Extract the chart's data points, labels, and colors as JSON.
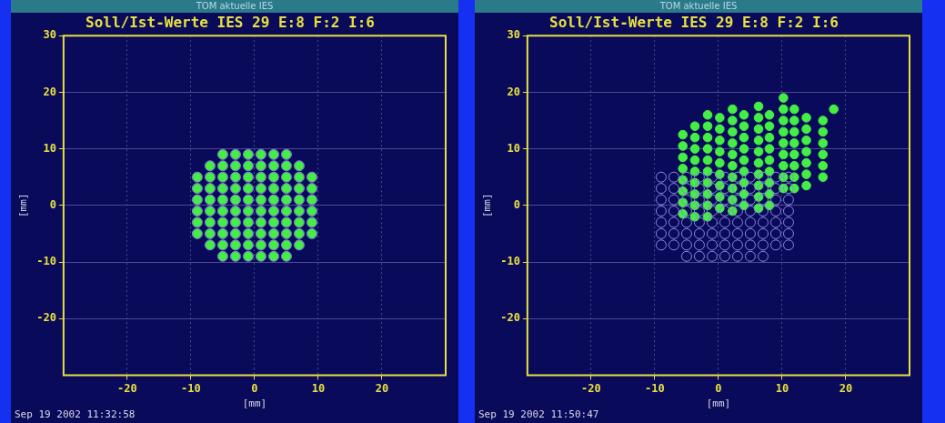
{
  "chart_data": [
    {
      "type": "scatter",
      "title": "Soll/Ist-Werte IES 29 E:8 F:2 I:6",
      "subtitle": "TOM aktuelle IES",
      "xlabel": "[mm]",
      "ylabel": "[mm]",
      "annotations": [
        "Sep 19 2002 11:32:58"
      ],
      "xlim": [
        -30,
        30
      ],
      "ylim": [
        -30,
        30
      ],
      "xticks": [
        -20,
        -10,
        0,
        10,
        20
      ],
      "yticks": [
        -20,
        -10,
        0,
        10,
        20,
        30
      ],
      "grid": true,
      "legend": false,
      "marker": "circle",
      "series": [
        {
          "color": "#8a88e0",
          "x": [
            -5,
            -3,
            -1,
            1,
            3,
            5,
            -7,
            -5,
            -3,
            -1,
            1,
            3,
            5,
            7,
            -9,
            -7,
            -5,
            -3,
            -1,
            1,
            3,
            5,
            7,
            9,
            -9,
            -7,
            -5,
            -3,
            -1,
            1,
            3,
            5,
            7,
            9,
            -9,
            -7,
            -5,
            -3,
            -1,
            1,
            3,
            5,
            7,
            9,
            -9,
            -7,
            -5,
            -3,
            -1,
            1,
            3,
            5,
            7,
            9,
            -9,
            -7,
            -5,
            -3,
            -1,
            1,
            3,
            5,
            7,
            9,
            -9,
            -7,
            -5,
            -3,
            -1,
            1,
            3,
            5,
            7,
            9,
            -7,
            -5,
            -3,
            -1,
            1,
            3,
            5,
            7,
            -5,
            -3,
            -1,
            1,
            3,
            5
          ],
          "values": [
            9,
            9,
            9,
            9,
            9,
            9,
            7,
            7,
            7,
            7,
            7,
            7,
            7,
            7,
            5,
            5,
            5,
            5,
            5,
            5,
            5,
            5,
            5,
            5,
            3,
            3,
            3,
            3,
            3,
            3,
            3,
            3,
            3,
            3,
            1,
            1,
            1,
            1,
            1,
            1,
            1,
            1,
            1,
            1,
            -1,
            -1,
            -1,
            -1,
            -1,
            -1,
            -1,
            -1,
            -1,
            -1,
            -3,
            -3,
            -3,
            -3,
            -3,
            -3,
            -3,
            -3,
            -3,
            -3,
            -5,
            -5,
            -5,
            -5,
            -5,
            -5,
            -5,
            -5,
            -5,
            -5,
            -7,
            -7,
            -7,
            -7,
            -7,
            -7,
            -7,
            -7,
            -9,
            -9,
            -9,
            -9,
            -9,
            -9
          ]
        },
        {
          "color": "#44ee44",
          "x": [
            -5,
            -3,
            -1,
            1,
            3,
            5,
            -7,
            -5,
            -3,
            -1,
            1,
            3,
            5,
            7,
            -9,
            -7,
            -5,
            -3,
            -1,
            1,
            3,
            5,
            7,
            9,
            -9,
            -7,
            -5,
            -3,
            -1,
            1,
            3,
            5,
            7,
            9,
            -9,
            -7,
            -5,
            -3,
            -1,
            1,
            3,
            5,
            7,
            9,
            -9,
            -7,
            -5,
            -3,
            -1,
            1,
            3,
            5,
            7,
            9,
            -9,
            -7,
            -5,
            -3,
            -1,
            1,
            3,
            5,
            7,
            9,
            -9,
            -7,
            -5,
            -3,
            -1,
            1,
            3,
            5,
            7,
            9,
            -7,
            -5,
            -3,
            -1,
            1,
            3,
            5,
            7,
            -5,
            -3,
            -1,
            1,
            3,
            5
          ],
          "values": [
            9,
            9,
            9,
            9,
            9,
            9,
            7,
            7,
            7,
            7,
            7,
            7,
            7,
            7,
            5,
            5,
            5,
            5,
            5,
            5,
            5,
            5,
            5,
            5,
            3,
            3,
            3,
            3,
            3,
            3,
            3,
            3,
            3,
            3,
            1,
            1,
            1,
            1,
            1,
            1,
            1,
            1,
            1,
            1,
            -1,
            -1,
            -1,
            -1,
            -1,
            -1,
            -1,
            -1,
            -1,
            -1,
            -3,
            -3,
            -3,
            -3,
            -3,
            -3,
            -3,
            -3,
            -3,
            -3,
            -5,
            -5,
            -5,
            -5,
            -5,
            -5,
            -5,
            -5,
            -5,
            -5,
            -7,
            -7,
            -7,
            -7,
            -7,
            -7,
            -7,
            -7,
            -9,
            -9,
            -9,
            -9,
            -9,
            -9
          ]
        }
      ]
    },
    {
      "type": "scatter",
      "title": "Soll/Ist-Werte IES 29 E:8 F:2 I:6",
      "subtitle": "TOM aktuelle IES",
      "xlabel": "[mm]",
      "ylabel": "[mm]",
      "annotations": [
        "Sep 19 2002 11:50:47"
      ],
      "xlim": [
        -30,
        30
      ],
      "ylim": [
        -30,
        30
      ],
      "xticks": [
        -20,
        -10,
        0,
        10,
        20
      ],
      "yticks": [
        -20,
        -10,
        0,
        10,
        20,
        30
      ],
      "grid": true,
      "legend": false,
      "marker": "circle",
      "series": [
        {
          "color": "#8a88e0",
          "x": [
            -9,
            -7,
            -5,
            -3,
            -1,
            1,
            3,
            5,
            7,
            9,
            11,
            -9,
            -7,
            -5,
            -3,
            -1,
            1,
            3,
            5,
            7,
            9,
            11,
            -9,
            -7,
            -5,
            -3,
            -1,
            1,
            3,
            5,
            7,
            9,
            11,
            -9,
            -7,
            -5,
            -3,
            -1,
            1,
            3,
            5,
            7,
            9,
            11,
            -9,
            -7,
            -5,
            -3,
            -1,
            1,
            3,
            5,
            7,
            9,
            11,
            -9,
            -7,
            -5,
            -3,
            -1,
            1,
            3,
            5,
            7,
            9,
            11,
            -9,
            -7,
            -5,
            -3,
            -1,
            1,
            3,
            5,
            7,
            9,
            11,
            -5,
            -3,
            -1,
            1,
            3,
            5,
            7
          ],
          "values": [
            5,
            5,
            5,
            5,
            5,
            5,
            5,
            5,
            5,
            5,
            5,
            3,
            3,
            3,
            3,
            3,
            3,
            3,
            3,
            3,
            3,
            3,
            1,
            1,
            1,
            1,
            1,
            1,
            1,
            1,
            1,
            1,
            1,
            -1,
            -1,
            -1,
            -1,
            -1,
            -1,
            -1,
            -1,
            -1,
            -1,
            -1,
            -3,
            -3,
            -3,
            -3,
            -3,
            -3,
            -3,
            -3,
            -3,
            -3,
            -3,
            -5,
            -5,
            -5,
            -5,
            -5,
            -5,
            -5,
            -5,
            -5,
            -5,
            -5,
            -7,
            -7,
            -7,
            -7,
            -7,
            -7,
            -7,
            -7,
            -7,
            -7,
            -7,
            -9,
            -9,
            -9,
            -9,
            -9,
            -9,
            -9
          ]
        },
        {
          "color": "#44ee44",
          "x": [
            -5.6,
            -5.6,
            -5.6,
            -5.6,
            -5.6,
            -5.6,
            -5.6,
            -5.6,
            -3.7,
            -3.7,
            -3.7,
            -3.7,
            -3.7,
            -3.7,
            -3.7,
            -3.7,
            -3.7,
            -1.7,
            -1.7,
            -1.7,
            -1.7,
            -1.7,
            -1.7,
            -1.7,
            -1.7,
            -1.7,
            -1.7,
            0.2,
            0.2,
            0.2,
            0.2,
            0.2,
            0.2,
            0.2,
            0.2,
            0.2,
            2.2,
            2.2,
            2.2,
            2.2,
            2.2,
            2.2,
            2.2,
            2.2,
            2.2,
            2.2,
            4,
            4,
            4,
            4,
            4,
            4,
            4,
            4,
            4,
            6.3,
            6.3,
            6.3,
            6.3,
            6.3,
            6.3,
            6.3,
            6.3,
            6.3,
            6.3,
            8,
            8,
            8,
            8,
            8,
            8,
            8,
            8,
            8,
            10.2,
            10.2,
            10.2,
            10.2,
            10.2,
            10.2,
            10.2,
            10.2,
            10.2,
            11.9,
            11.9,
            11.9,
            11.9,
            11.9,
            11.9,
            11.9,
            11.9,
            13.8,
            13.8,
            13.8,
            13.8,
            13.8,
            13.8,
            13.8,
            16.4,
            16.4,
            16.4,
            16.4,
            16.4,
            16.4,
            18.1
          ],
          "values": [
            -1.5,
            0.5,
            2.5,
            4.5,
            6.5,
            8.5,
            10.5,
            12.5,
            -2,
            0,
            2,
            4,
            6,
            8,
            10,
            12,
            14,
            -2,
            0,
            2,
            4,
            6,
            8,
            10,
            12,
            14,
            16,
            -0.5,
            1.5,
            3.5,
            5.5,
            7.5,
            9.5,
            11.5,
            13.5,
            15.5,
            -1,
            1,
            3,
            5,
            7,
            9,
            11,
            13,
            15,
            17,
            0,
            2,
            4,
            6,
            8,
            10,
            12,
            14,
            16,
            -0.5,
            1.5,
            3.5,
            5.5,
            7.5,
            9.5,
            11.5,
            13.5,
            15.5,
            17.5,
            0,
            2,
            4,
            6,
            8,
            10,
            12,
            14,
            16,
            3,
            5,
            7,
            9,
            11,
            13,
            15,
            17,
            19,
            3,
            5,
            7,
            9,
            11,
            13,
            15,
            17,
            3.5,
            5.5,
            7.5,
            9.5,
            11.5,
            13.5,
            15.5,
            5,
            7,
            9,
            11,
            13,
            15,
            17
          ]
        }
      ]
    }
  ]
}
